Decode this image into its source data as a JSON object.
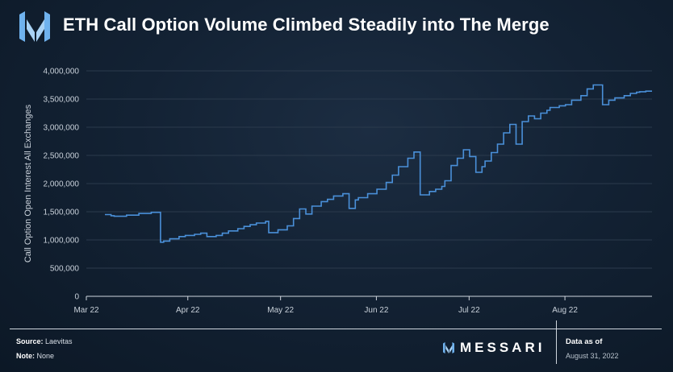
{
  "header": {
    "title": "ETH Call Option Volume Climbed Steadily into The Merge",
    "logo_icon": "messari-m-logo-icon"
  },
  "footer": {
    "source_label": "Source:",
    "source_value": "Laevitas",
    "note_label": "Note:",
    "note_value": "None",
    "brand": "MESSARI",
    "data_as_of_label": "Data as of",
    "data_as_of_date": "August 31, 2022"
  },
  "colors": {
    "line": "#4a90d9",
    "grid": "#2b3a4c",
    "axis_text": "#c9d1da",
    "background": "#132234"
  },
  "chart_data": {
    "type": "line",
    "title": "ETH Call Option Volume Climbed Steadily into The Merge",
    "xlabel": "",
    "ylabel": "Call Option Open Interest All Exchanges",
    "x_ticks": [
      "Mar 22",
      "Apr 22",
      "May 22",
      "Jun 22",
      "Jul 22",
      "Aug 22"
    ],
    "x_range": [
      "2022-03-01",
      "2022-08-31"
    ],
    "ylim": [
      0,
      4000000
    ],
    "y_ticks": [
      0,
      500000,
      1000000,
      1500000,
      2000000,
      2500000,
      3000000,
      3500000,
      4000000
    ],
    "y_tick_labels": [
      "0",
      "500,000",
      "1,000,000",
      "1,500,000",
      "2,000,000",
      "2,500,000",
      "3,000,000",
      "3,500,000",
      "4,000,000"
    ],
    "grid": true,
    "series": [
      {
        "color": "#4a90d9",
        "x": [
          "2022-03-07",
          "2022-03-09",
          "2022-03-10",
          "2022-03-14",
          "2022-03-18",
          "2022-03-22",
          "2022-03-25",
          "2022-03-26",
          "2022-03-28",
          "2022-03-31",
          "2022-04-02",
          "2022-04-05",
          "2022-04-07",
          "2022-04-09",
          "2022-04-12",
          "2022-04-14",
          "2022-04-16",
          "2022-04-19",
          "2022-04-21",
          "2022-04-23",
          "2022-04-25",
          "2022-04-28",
          "2022-04-29",
          "2022-05-02",
          "2022-05-05",
          "2022-05-07",
          "2022-05-09",
          "2022-05-11",
          "2022-05-13",
          "2022-05-16",
          "2022-05-18",
          "2022-05-20",
          "2022-05-23",
          "2022-05-25",
          "2022-05-27",
          "2022-05-28",
          "2022-05-31",
          "2022-06-03",
          "2022-06-06",
          "2022-06-08",
          "2022-06-10",
          "2022-06-13",
          "2022-06-15",
          "2022-06-17",
          "2022-06-20",
          "2022-06-22",
          "2022-06-24",
          "2022-06-25",
          "2022-06-27",
          "2022-06-29",
          "2022-07-01",
          "2022-07-03",
          "2022-07-05",
          "2022-07-07",
          "2022-07-08",
          "2022-07-10",
          "2022-07-12",
          "2022-07-14",
          "2022-07-16",
          "2022-07-18",
          "2022-07-20",
          "2022-07-22",
          "2022-07-24",
          "2022-07-26",
          "2022-07-28",
          "2022-07-29",
          "2022-08-01",
          "2022-08-03",
          "2022-08-05",
          "2022-08-08",
          "2022-08-10",
          "2022-08-12",
          "2022-08-15",
          "2022-08-17",
          "2022-08-19",
          "2022-08-22",
          "2022-08-24",
          "2022-08-26",
          "2022-08-27",
          "2022-08-29",
          "2022-08-31"
        ],
        "values": [
          1450000,
          1430000,
          1420000,
          1440000,
          1470000,
          1490000,
          960000,
          980000,
          1020000,
          1060000,
          1080000,
          1100000,
          1120000,
          1060000,
          1080000,
          1120000,
          1160000,
          1200000,
          1240000,
          1270000,
          1300000,
          1330000,
          1130000,
          1180000,
          1250000,
          1380000,
          1550000,
          1460000,
          1600000,
          1680000,
          1720000,
          1780000,
          1820000,
          1560000,
          1710000,
          1750000,
          1820000,
          1900000,
          2020000,
          2150000,
          2300000,
          2450000,
          2560000,
          1800000,
          1860000,
          1900000,
          1950000,
          2050000,
          2320000,
          2450000,
          2600000,
          2480000,
          2200000,
          2300000,
          2400000,
          2550000,
          2700000,
          2900000,
          3050000,
          2700000,
          3100000,
          3200000,
          3150000,
          3250000,
          3300000,
          3350000,
          3380000,
          3400000,
          3480000,
          3560000,
          3680000,
          3750000,
          3400000,
          3480000,
          3520000,
          3560000,
          3600000,
          3620000,
          3630000,
          3640000,
          3640000
        ]
      }
    ]
  }
}
